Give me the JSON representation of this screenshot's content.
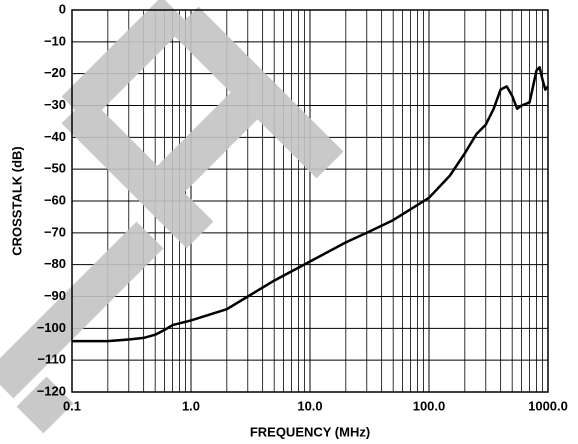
{
  "chart_data": {
    "type": "line",
    "xlabel": "FREQUENCY (MHz)",
    "ylabel": "CROSSTALK (dB)",
    "x": [
      0.1,
      0.2,
      0.3,
      0.4,
      0.5,
      0.6,
      0.7,
      1,
      2,
      3,
      5,
      10,
      20,
      30,
      50,
      100,
      150,
      200,
      250,
      300,
      350,
      400,
      450,
      500,
      550,
      600,
      700,
      800,
      850,
      900,
      950,
      1000
    ],
    "values": [
      -104,
      -104,
      -103.5,
      -103,
      -102,
      -100.5,
      -99,
      -97.5,
      -94,
      -90,
      -85,
      -79,
      -73,
      -70,
      -66,
      -59,
      -52,
      -45,
      -39,
      -36,
      -31,
      -25,
      -24,
      -27,
      -31,
      -30,
      -29,
      -19,
      -18,
      -22,
      -25,
      -24
    ],
    "color": "#000000",
    "xscale": "log",
    "xlim": [
      0.1,
      1000
    ],
    "xticks": [
      0.1,
      {
        "value": 1,
        "label": "1.0"
      },
      {
        "value": 10,
        "label": "10.0"
      },
      {
        "value": 100,
        "label": "100.0"
      },
      {
        "value": 1000,
        "label": "1000.0"
      }
    ],
    "xminorticks": [
      0.2,
      0.3,
      0.4,
      0.5,
      0.6,
      0.7,
      0.8,
      0.9,
      2,
      3,
      4,
      5,
      6,
      7,
      8,
      9,
      20,
      30,
      40,
      50,
      60,
      70,
      80,
      90,
      200,
      300,
      400,
      500,
      600,
      700,
      800,
      900
    ],
    "ylim": [
      -120,
      0
    ],
    "yticks": [
      {
        "value": -120,
        "label": "−120"
      },
      {
        "value": -110,
        "label": "−110"
      },
      {
        "value": -100,
        "label": "−100"
      },
      {
        "value": -90,
        "label": "−90"
      },
      {
        "value": -80,
        "label": "−80"
      },
      {
        "value": -70,
        "label": "−70"
      },
      {
        "value": -60,
        "label": "−60"
      },
      {
        "value": -50,
        "label": "−50"
      },
      {
        "value": -40,
        "label": "−40"
      },
      {
        "value": -30,
        "label": "−30"
      },
      {
        "value": -20,
        "label": "−20"
      },
      {
        "value": -10,
        "label": "−10"
      },
      0
    ],
    "grid": true
  }
}
